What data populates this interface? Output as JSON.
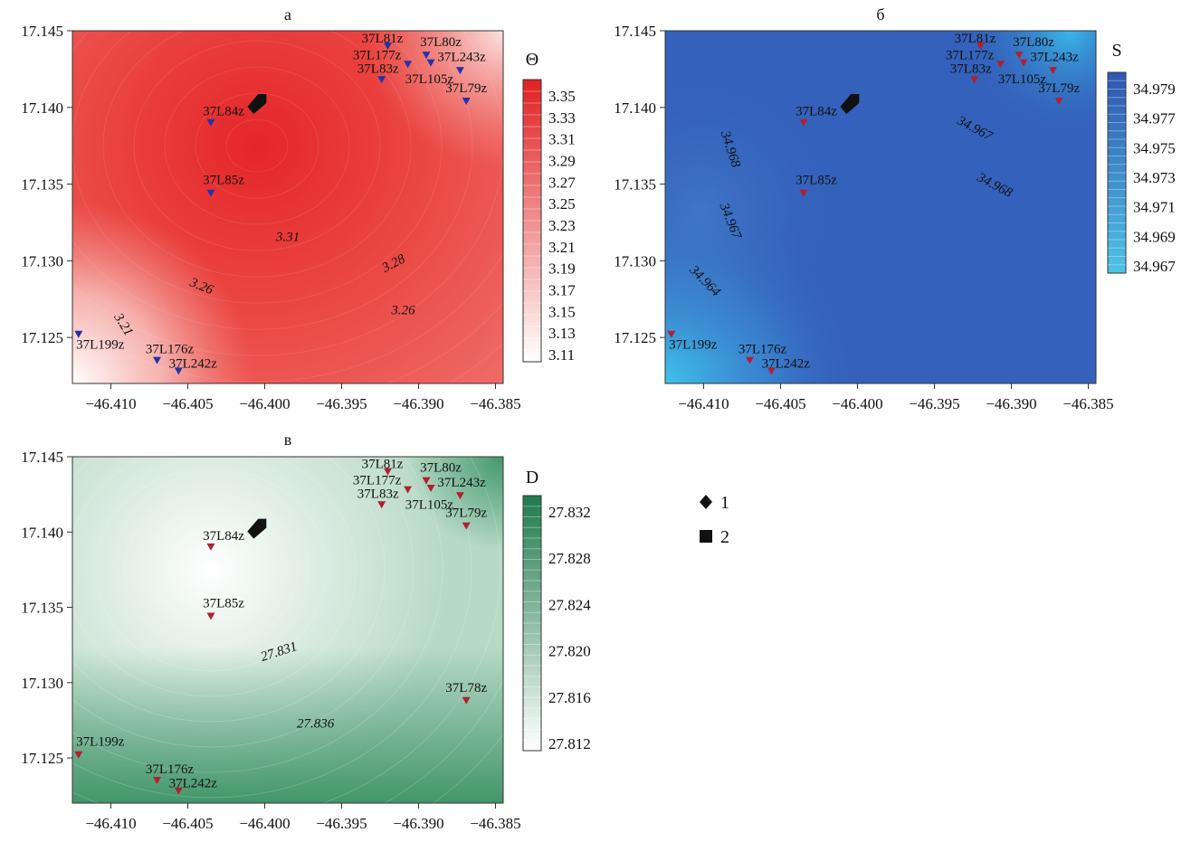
{
  "legend": {
    "items": [
      {
        "symbol": "diamond",
        "label": "1"
      },
      {
        "symbol": "square",
        "label": "2"
      }
    ]
  },
  "chart_data": [
    {
      "type": "heatmap",
      "title": "а",
      "xlim": [
        -46.4125,
        -46.3845
      ],
      "ylim": [
        17.122,
        17.145
      ],
      "xticks": [
        "−46.410",
        "−46.405",
        "−46.400",
        "−46.395",
        "−46.390",
        "−46.385"
      ],
      "xtick_values": [
        -46.41,
        -46.405,
        -46.4,
        -46.395,
        -46.39,
        -46.385
      ],
      "yticks": [
        "17.145",
        "17.140",
        "17.135",
        "17.130",
        "17.125"
      ],
      "ytick_values": [
        17.145,
        17.14,
        17.135,
        17.13,
        17.125
      ],
      "colorbar": {
        "label": "Θ",
        "ticks": [
          "3.35",
          "3.33",
          "3.31",
          "3.29",
          "3.27",
          "3.25",
          "3.23",
          "3.21",
          "3.19",
          "3.17",
          "3.15",
          "3.13",
          "3.11"
        ],
        "color_high": "#e02020",
        "color_low": "#ffffff"
      },
      "field": {
        "high_center": [
          -46.4005,
          17.1375
        ],
        "high_color": "#e5262a",
        "mid_color": "#ee6a66",
        "low_corner_color": "#ffffff",
        "top_right_color": "#fbe3e1"
      },
      "stations": [
        {
          "name": "37L81z",
          "lon": -46.392,
          "lat": 17.144,
          "lx": -6,
          "ly": -4
        },
        {
          "name": "37L80z",
          "lon": -46.3895,
          "lat": 17.1434,
          "lx": 16,
          "ly": -10
        },
        {
          "name": "37L177z",
          "lon": -46.3907,
          "lat": 17.1428,
          "lx": -34,
          "ly": -6
        },
        {
          "name": "37L243z",
          "lon": -46.3892,
          "lat": 17.1429,
          "lx": 34,
          "ly": -2
        },
        {
          "name": "37L83z",
          "lon": -46.3924,
          "lat": 17.1418,
          "lx": -4,
          "ly": -8
        },
        {
          "name": "37L105z",
          "lon": -46.3873,
          "lat": 17.1424,
          "lx": -34,
          "ly": 14
        },
        {
          "name": "37L79z",
          "lon": -46.3869,
          "lat": 17.1404,
          "lx": 0,
          "ly": -10
        },
        {
          "name": "37L84z",
          "lon": -46.4035,
          "lat": 17.139,
          "lx": 14,
          "ly": -8
        },
        {
          "name": "37L85z",
          "lon": -46.4035,
          "lat": 17.1344,
          "lx": 14,
          "ly": -10
        },
        {
          "name": "37L199z",
          "lon": -46.4121,
          "lat": 17.1252,
          "lx": 24,
          "ly": 16
        },
        {
          "name": "37L176z",
          "lon": -46.407,
          "lat": 17.1235,
          "lx": 14,
          "ly": -8
        },
        {
          "name": "37L242z",
          "lon": -46.4056,
          "lat": 17.1228,
          "lx": 16,
          "ly": -4
        }
      ],
      "contour_labels": [
        {
          "text": "3.31",
          "lon": -46.3985,
          "lat": 17.1313,
          "rot": 0
        },
        {
          "text": "3.28",
          "lon": -46.3915,
          "lat": 17.1296,
          "rot": -28
        },
        {
          "text": "3.26",
          "lon": -46.4042,
          "lat": 17.1281,
          "rot": 22
        },
        {
          "text": "3.26",
          "lon": -46.391,
          "lat": 17.1265,
          "rot": 0
        },
        {
          "text": "3.21",
          "lon": -46.4094,
          "lat": 17.1257,
          "rot": 58
        }
      ],
      "marker": {
        "type": "square",
        "lon": -46.4006,
        "lat": 17.1404
      }
    },
    {
      "type": "heatmap",
      "title": "б",
      "xlim": [
        -46.4125,
        -46.3845
      ],
      "ylim": [
        17.122,
        17.145
      ],
      "xticks": [
        "−46.410",
        "−46.405",
        "−46.400",
        "−46.395",
        "−46.390",
        "−46.385"
      ],
      "xtick_values": [
        -46.41,
        -46.405,
        -46.4,
        -46.395,
        -46.39,
        -46.385
      ],
      "yticks": [
        "17.145",
        "17.140",
        "17.135",
        "17.130",
        "17.125"
      ],
      "ytick_values": [
        17.145,
        17.14,
        17.135,
        17.13,
        17.125
      ],
      "colorbar": {
        "label": "S",
        "ticks": [
          "34.979",
          "34.977",
          "34.975",
          "34.973",
          "34.971",
          "34.969",
          "34.967"
        ],
        "color_high": "#2f56b0",
        "color_low": "#4ec3e6"
      },
      "field": {
        "base_color": "#3461bb",
        "low_corner_color": "#3fc2ea",
        "top_right_color": "#39b9e8"
      },
      "stations": [
        {
          "name": "37L81z",
          "lon": -46.392,
          "lat": 17.144,
          "lx": -6,
          "ly": -4
        },
        {
          "name": "37L80z",
          "lon": -46.3895,
          "lat": 17.1434,
          "lx": 16,
          "ly": -10
        },
        {
          "name": "37L177z",
          "lon": -46.3907,
          "lat": 17.1428,
          "lx": -34,
          "ly": -6
        },
        {
          "name": "37L243z",
          "lon": -46.3892,
          "lat": 17.1429,
          "lx": 34,
          "ly": -2
        },
        {
          "name": "37L83z",
          "lon": -46.3924,
          "lat": 17.1418,
          "lx": -4,
          "ly": -8
        },
        {
          "name": "37L105z",
          "lon": -46.3873,
          "lat": 17.1424,
          "lx": -34,
          "ly": 14
        },
        {
          "name": "37L79z",
          "lon": -46.3869,
          "lat": 17.1404,
          "lx": 0,
          "ly": -10
        },
        {
          "name": "37L84z",
          "lon": -46.4035,
          "lat": 17.139,
          "lx": 14,
          "ly": -8
        },
        {
          "name": "37L85z",
          "lon": -46.4035,
          "lat": 17.1344,
          "lx": 14,
          "ly": -10
        },
        {
          "name": "37L199z",
          "lon": -46.4121,
          "lat": 17.1252,
          "lx": 24,
          "ly": 16
        },
        {
          "name": "37L176z",
          "lon": -46.407,
          "lat": 17.1235,
          "lx": 14,
          "ly": -8
        },
        {
          "name": "37L242z",
          "lon": -46.4056,
          "lat": 17.1228,
          "lx": 16,
          "ly": -4
        }
      ],
      "contour_labels": [
        {
          "text": "34.968",
          "lon": -46.4085,
          "lat": 17.1372,
          "rot": 72
        },
        {
          "text": "34.967",
          "lon": -46.3925,
          "lat": 17.1384,
          "rot": 28
        },
        {
          "text": "34.968",
          "lon": -46.3912,
          "lat": 17.1347,
          "rot": 28
        },
        {
          "text": "34.967",
          "lon": -46.4085,
          "lat": 17.1325,
          "rot": 68
        },
        {
          "text": "34.964",
          "lon": -46.4101,
          "lat": 17.1285,
          "rot": 45
        }
      ],
      "marker": {
        "type": "square",
        "lon": -46.4006,
        "lat": 17.1404
      }
    },
    {
      "type": "heatmap",
      "title": "в",
      "xlim": [
        -46.4125,
        -46.3845
      ],
      "ylim": [
        17.122,
        17.145
      ],
      "xticks": [
        "−46.410",
        "−46.405",
        "−46.400",
        "−46.395",
        "−46.390",
        "−46.385"
      ],
      "xtick_values": [
        -46.41,
        -46.405,
        -46.4,
        -46.395,
        -46.39,
        -46.385
      ],
      "yticks": [
        "17.145",
        "17.140",
        "17.135",
        "17.130",
        "17.125"
      ],
      "ytick_values": [
        17.145,
        17.14,
        17.135,
        17.13,
        17.125
      ],
      "colorbar": {
        "label": "D",
        "ticks": [
          "27.832",
          "27.828",
          "27.824",
          "27.820",
          "27.816",
          "27.812"
        ],
        "color_high": "#1f7a4e",
        "color_low": "#ffffff"
      },
      "field": {
        "base_color": "#b7d9c6",
        "low_center": [
          -46.4035,
          17.1375
        ],
        "low_color": "#ffffff",
        "bottom_color": "#2e8a5a",
        "top_right_color": "#3b9466"
      },
      "stations": [
        {
          "name": "37L81z",
          "lon": -46.392,
          "lat": 17.144,
          "lx": -6,
          "ly": -4
        },
        {
          "name": "37L80z",
          "lon": -46.3895,
          "lat": 17.1434,
          "lx": 16,
          "ly": -10
        },
        {
          "name": "37L177z",
          "lon": -46.3907,
          "lat": 17.1428,
          "lx": -34,
          "ly": -6
        },
        {
          "name": "37L243z",
          "lon": -46.3892,
          "lat": 17.1429,
          "lx": 34,
          "ly": -2
        },
        {
          "name": "37L83z",
          "lon": -46.3924,
          "lat": 17.1418,
          "lx": -4,
          "ly": -8
        },
        {
          "name": "37L105z",
          "lon": -46.3873,
          "lat": 17.1424,
          "lx": -34,
          "ly": 14
        },
        {
          "name": "37L79z",
          "lon": -46.3869,
          "lat": 17.1404,
          "lx": 0,
          "ly": -10
        },
        {
          "name": "37L84z",
          "lon": -46.4035,
          "lat": 17.139,
          "lx": 14,
          "ly": -8
        },
        {
          "name": "37L85z",
          "lon": -46.4035,
          "lat": 17.1344,
          "lx": 14,
          "ly": -10
        },
        {
          "name": "37L78z",
          "lon": -46.3869,
          "lat": 17.1288,
          "lx": 0,
          "ly": -10
        },
        {
          "name": "37L199z",
          "lon": -46.4121,
          "lat": 17.1252,
          "lx": 24,
          "ly": -10
        },
        {
          "name": "37L176z",
          "lon": -46.407,
          "lat": 17.1235,
          "lx": 14,
          "ly": -8
        },
        {
          "name": "37L242z",
          "lon": -46.4056,
          "lat": 17.1228,
          "lx": 16,
          "ly": -4
        }
      ],
      "contour_labels": [
        {
          "text": "27.831",
          "lon": -46.399,
          "lat": 17.1318,
          "rot": -18
        },
        {
          "text": "27.836",
          "lon": -46.3967,
          "lat": 17.127,
          "rot": 0
        }
      ],
      "marker": {
        "type": "square",
        "lon": -46.4006,
        "lat": 17.1404
      }
    }
  ]
}
